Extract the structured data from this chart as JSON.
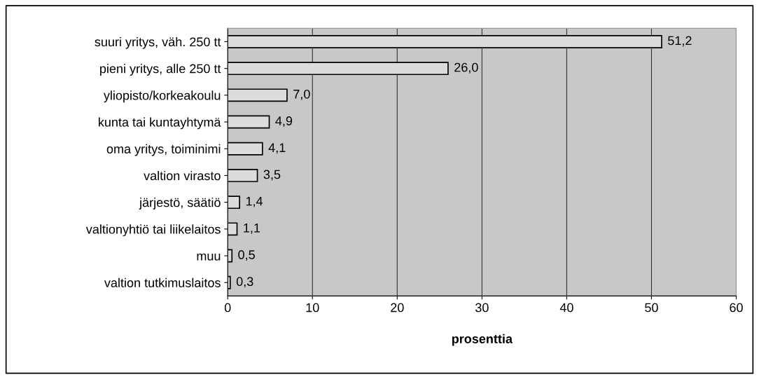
{
  "chart_data": {
    "type": "bar",
    "orientation": "horizontal",
    "xlabel": "prosenttia",
    "categories": [
      "suuri yritys, väh. 250 tt",
      "pieni yritys, alle 250 tt",
      "yliopisto/korkeakoulu",
      "kunta tai kuntayhtymä",
      "oma yritys, toiminimi",
      "valtion virasto",
      "järjestö, säätiö",
      "valtionyhtiö tai liikelaitos",
      "muu",
      "valtion tutkimuslaitos"
    ],
    "values": [
      51.2,
      26.0,
      7.0,
      4.9,
      4.1,
      3.5,
      1.4,
      1.1,
      0.5,
      0.3
    ],
    "value_labels": [
      "51,2",
      "26,0",
      "7,0",
      "4,9",
      "4,1",
      "3,5",
      "1,4",
      "1,1",
      "0,5",
      "0,3"
    ],
    "color": "#dcdcdc",
    "xlim": [
      0,
      60
    ],
    "xticks": [
      0,
      10,
      20,
      30,
      40,
      50,
      60
    ],
    "grid": "x"
  }
}
